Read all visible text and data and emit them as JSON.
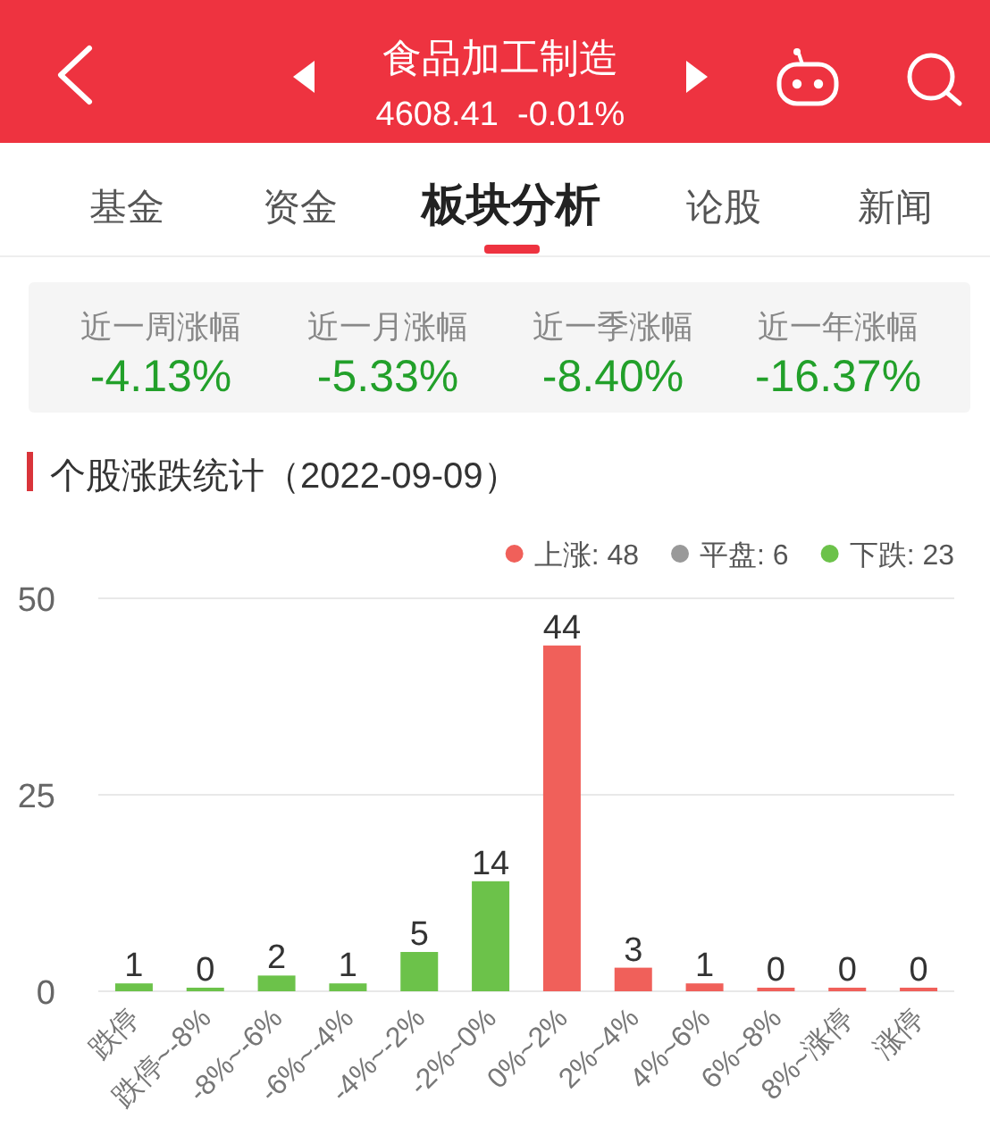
{
  "chart_data": [
    {
      "type": "other",
      "title": "食品加工制造",
      "subtitle": "4608.41  -0.01%",
      "annotations": [
        "基金",
        "资金",
        "板块分析",
        "论股",
        "新闻",
        "近一周涨幅",
        "-4.13%",
        "近一月涨幅",
        "-5.33%",
        "近一季涨幅",
        "-8.40%",
        "近一年涨幅",
        "-16.37%"
      ]
    },
    {
      "type": "bar",
      "title": "个股涨跌统计（2022-09-09）",
      "categories": [
        "跌停",
        "跌停~-8%",
        "-8%~-6%",
        "-6%~-4%",
        "-4%~-2%",
        "-2%~0%",
        "0%~2%",
        "2%~4%",
        "4%~6%",
        "6%~8%",
        "8%~涨停",
        "涨停"
      ],
      "series": [
        {
          "name": "上涨: 48",
          "color": "#f0605a",
          "values": [
            null,
            null,
            null,
            null,
            null,
            null,
            44,
            3,
            1,
            0,
            0,
            0
          ]
        },
        {
          "name": "平盘: 6",
          "color": "#999999",
          "values": [
            null,
            null,
            null,
            null,
            null,
            null,
            null,
            null,
            null,
            null,
            null,
            null
          ]
        },
        {
          "name": "下跌: 23",
          "color": "#6cc24a",
          "values": [
            1,
            0,
            2,
            1,
            5,
            14,
            null,
            null,
            null,
            null,
            null,
            null
          ]
        }
      ],
      "ylim": [
        0,
        50
      ],
      "yticks": [
        0,
        25,
        50
      ],
      "grid": "y",
      "legend": "top right",
      "data_labels": true
    }
  ]
}
